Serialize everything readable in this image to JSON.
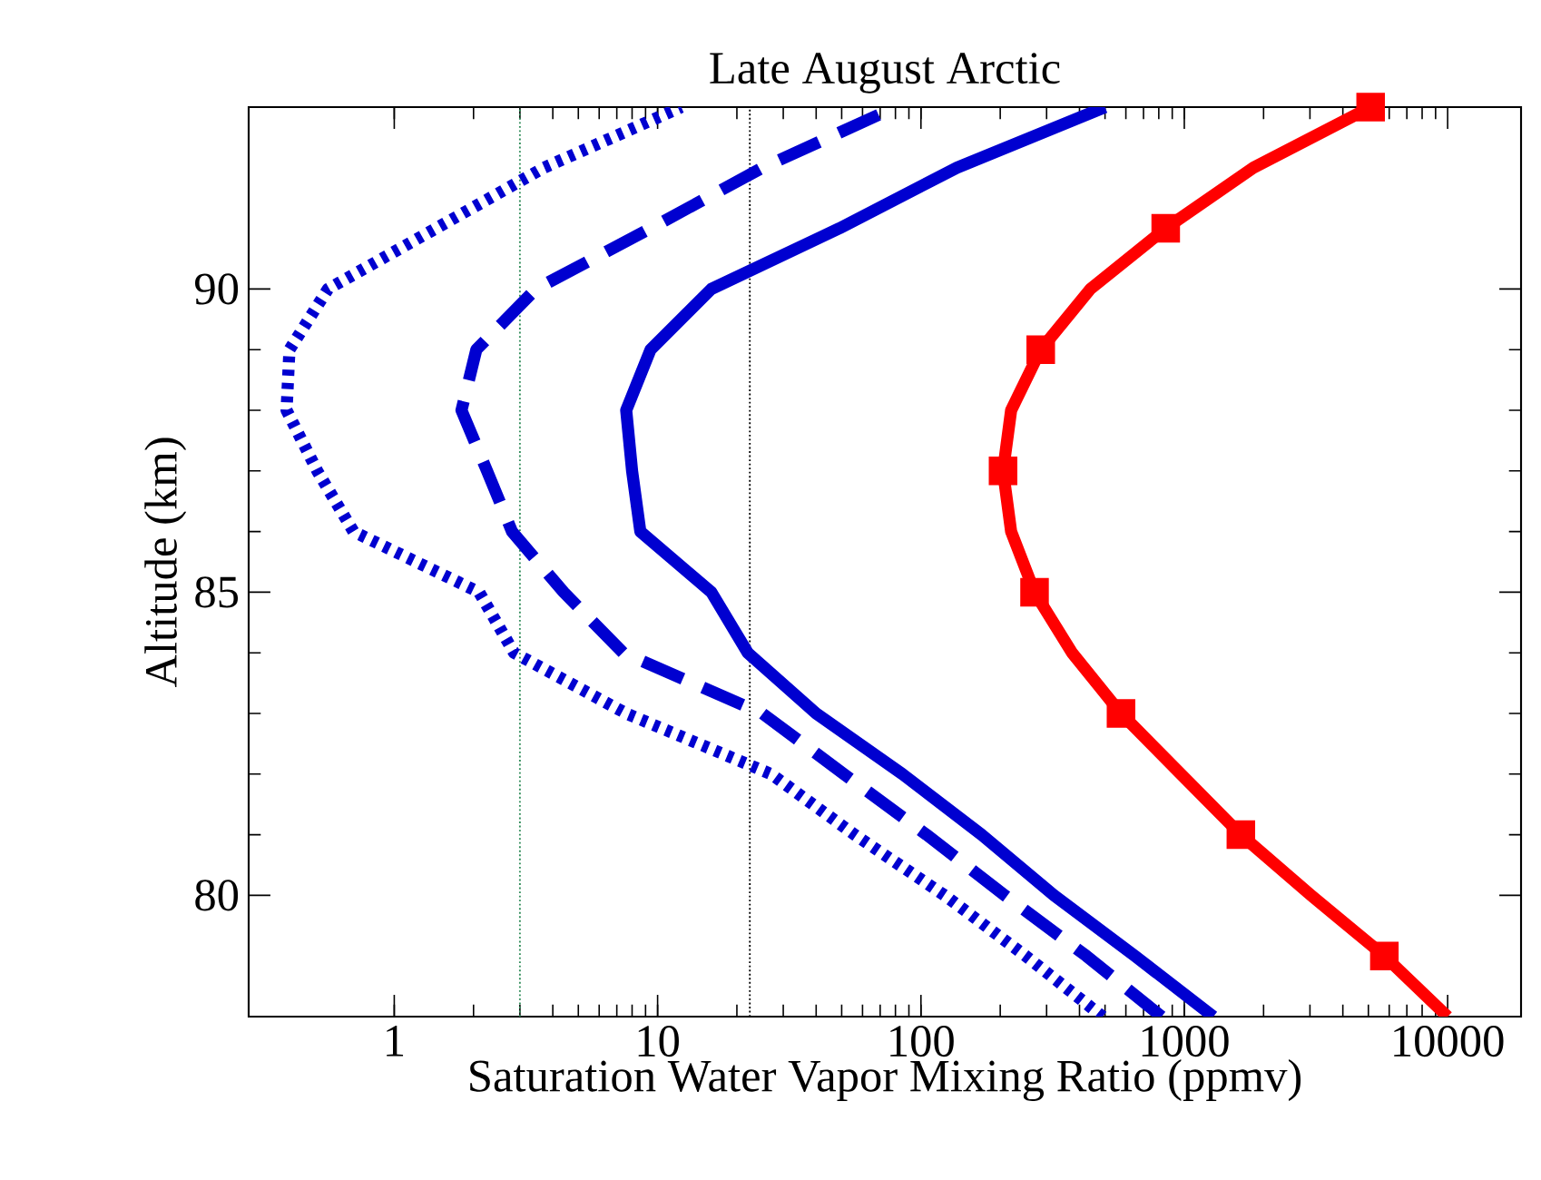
{
  "chart_data": {
    "type": "line",
    "title": "Late August Arctic",
    "xlabel": "Saturation Water Vapor Mixing Ratio (ppmv)",
    "ylabel": "Altitude (km)",
    "log": "x",
    "xlim": [
      0.28,
      19000
    ],
    "ylim": [
      78,
      93
    ],
    "xticks": [
      1,
      10,
      100,
      1000,
      10000
    ],
    "yticks": [
      80,
      85,
      90
    ],
    "grid": false,
    "series": [
      {
        "color": "#ff0000",
        "line_style": "solid",
        "marker": "none",
        "x": [
          10000,
          5750,
          3030,
          1640,
          970,
          575,
          375,
          270,
          220,
          205,
          220,
          285,
          440,
          850,
          1830,
          5100
        ],
        "values": [
          78,
          79,
          80,
          81,
          82,
          83,
          84,
          85,
          86,
          87,
          88,
          89,
          90,
          91,
          92,
          93
        ]
      },
      {
        "color": "#0000d0",
        "line_style": "solid",
        "marker": "none",
        "x": [
          1290,
          650,
          320,
          170,
          85,
          40,
          22,
          16,
          8.6,
          8.0,
          7.6,
          9.4,
          16,
          49,
          137,
          500
        ],
        "values": [
          78,
          79,
          80,
          81,
          82,
          83,
          84,
          85,
          86,
          87,
          88,
          89,
          90,
          91,
          92,
          93
        ]
      },
      {
        "color": "#0000d0",
        "line_style": "dashed",
        "marker": "none",
        "x": [
          820,
          425,
          208,
          105,
          51,
          25,
          7.4,
          4.4,
          2.8,
          2.25,
          1.8,
          2.05,
          3.45,
          9.4,
          25,
          80
        ],
        "values": [
          78,
          79,
          80,
          81,
          82,
          83,
          84,
          85,
          86,
          87,
          88,
          89,
          90,
          91,
          92,
          93
        ]
      },
      {
        "color": "#0000d0",
        "line_style": "dotted",
        "marker": "none",
        "x": [
          490,
          250,
          123,
          56,
          27,
          7.6,
          2.85,
          2.1,
          0.7,
          0.51,
          0.39,
          0.4,
          0.56,
          1.44,
          3.7,
          12.3
        ],
        "values": [
          78,
          79,
          80,
          81,
          82,
          83,
          84,
          85,
          86,
          87,
          88,
          89,
          90,
          91,
          92,
          93
        ]
      },
      {
        "type": "scatter",
        "color": "#ff0000",
        "marker": "square",
        "x": [
          5750,
          1640,
          575,
          270,
          205,
          285,
          850,
          5100
        ],
        "values": [
          79,
          81,
          83,
          85,
          87,
          89,
          91,
          93
        ]
      }
    ],
    "ref_lines": [
      {
        "axis": "x",
        "value": 3,
        "color": "#2e8b57",
        "line_style": "dotted"
      },
      {
        "axis": "x",
        "value": 22.4,
        "color": "#000000",
        "line_style": "dotted"
      }
    ]
  }
}
